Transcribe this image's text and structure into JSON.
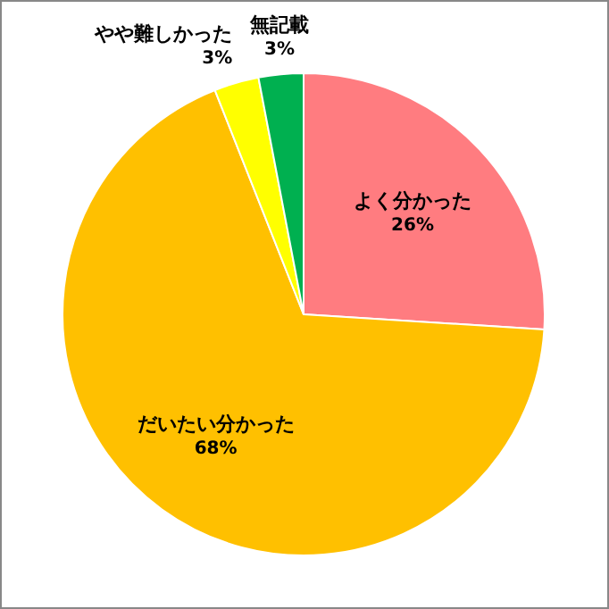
{
  "chart_data": {
    "type": "pie",
    "categories": [
      "よく分かった",
      "だいたい分かった",
      "やや難しかった",
      "無記載"
    ],
    "values": [
      26,
      68,
      3,
      3
    ],
    "value_labels": [
      "26%",
      "68%",
      "3%",
      "3%"
    ],
    "colors": [
      "#ff7c80",
      "#ffc000",
      "#ffff00",
      "#00b050"
    ]
  }
}
